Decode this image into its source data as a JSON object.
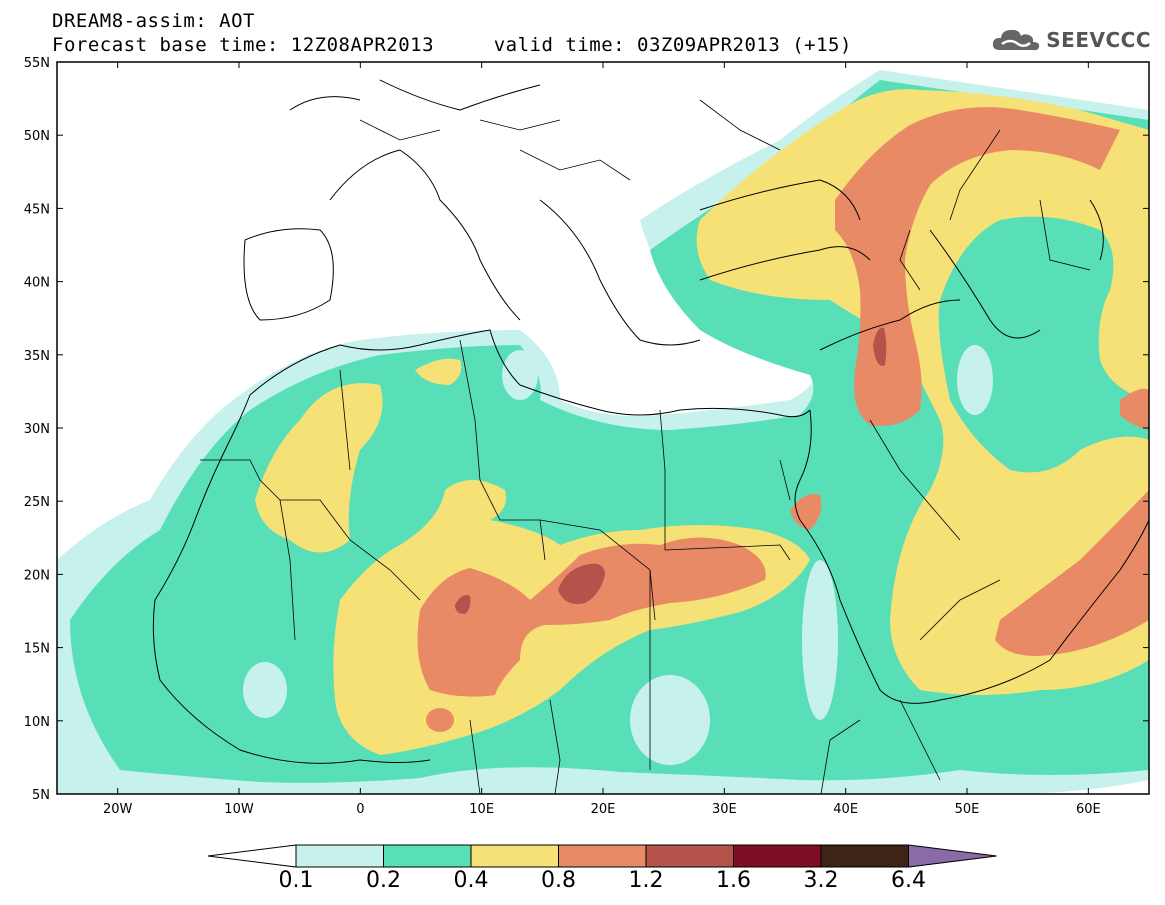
{
  "title": {
    "line1": "DREAM8-assim: AOT",
    "line2": "Forecast base time: 12Z08APR2013     valid time: 03Z09APR2013 (+15)"
  },
  "logo": {
    "text": "SEEVCCC",
    "icon": "cloud-icon"
  },
  "map": {
    "variable": "AOT",
    "lon_range": [
      -25,
      65
    ],
    "lat_range": [
      5,
      55
    ],
    "lon_ticks": [
      "20W",
      "10W",
      "0",
      "10E",
      "20E",
      "30E",
      "40E",
      "50E",
      "60E"
    ],
    "lat_ticks": [
      "55N",
      "50N",
      "45N",
      "40N",
      "35N",
      "30N",
      "25N",
      "20N",
      "15N",
      "10N",
      "5N"
    ]
  },
  "colorbar": {
    "levels": [
      "0.1",
      "0.2",
      "0.4",
      "0.8",
      "1.2",
      "1.6",
      "3.2",
      "6.4"
    ],
    "colors": [
      "#ffffff",
      "#c7f1ec",
      "#59dfb8",
      "#f5e176",
      "#e98a66",
      "#b5524c",
      "#7d0e25",
      "#3d2416",
      "#8b6aa8"
    ]
  }
}
